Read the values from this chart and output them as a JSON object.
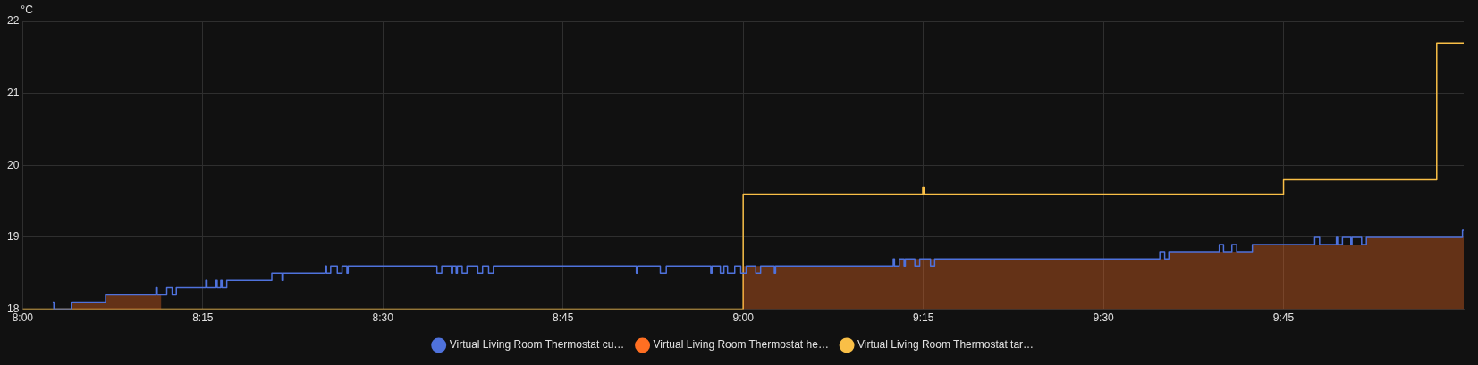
{
  "chart_data": {
    "type": "step",
    "ylabel": "°C",
    "xlim": [
      8,
      10
    ],
    "xticks": [
      {
        "value": 8,
        "label": "8:00"
      },
      {
        "value": 8.25,
        "label": "8:15"
      },
      {
        "value": 8.5,
        "label": "8:30"
      },
      {
        "value": 8.75,
        "label": "8:45"
      },
      {
        "value": 9,
        "label": "9:00"
      },
      {
        "value": 9.25,
        "label": "9:15"
      },
      {
        "value": 9.5,
        "label": "9:30"
      },
      {
        "value": 9.75,
        "label": "9:45"
      }
    ],
    "ylim": [
      18,
      22
    ],
    "yticks": [
      18,
      19,
      20,
      21,
      22
    ],
    "grid": true,
    "legend": "bottom",
    "marker": "none",
    "series": [
      {
        "name": "Virtual Living Room Thermostat cu…",
        "color": "#4f72dc",
        "x": [
          8.0417,
          8.0433,
          8.0675,
          8.115,
          8.185,
          8.1867,
          8.2,
          8.2075,
          8.2133,
          8.2542,
          8.2558,
          8.2683,
          8.27,
          8.275,
          8.2767,
          8.2833,
          8.3458,
          8.36,
          8.3617,
          8.42,
          8.4217,
          8.4275,
          8.4367,
          8.4433,
          8.45,
          8.4517,
          8.575,
          8.5817,
          8.595,
          8.5967,
          8.6017,
          8.6033,
          8.61,
          8.6167,
          8.6317,
          8.6383,
          8.6467,
          8.6533,
          8.8517,
          8.8533,
          8.885,
          8.8933,
          8.955,
          8.9567,
          8.9683,
          8.9733,
          8.9783,
          8.9883,
          8.9967,
          9.0042,
          9.0175,
          9.0242,
          9.0433,
          9.045,
          9.2083,
          9.21,
          9.2167,
          9.2233,
          9.225,
          9.2383,
          9.245,
          9.26,
          9.2658,
          9.5783,
          9.585,
          9.5908,
          9.6608,
          9.6667,
          9.6783,
          9.685,
          9.7067,
          9.7933,
          9.8,
          9.8233,
          9.825,
          9.8317,
          9.8433,
          9.845,
          9.8583,
          9.865,
          9.9983,
          10
        ],
        "values": [
          18.1,
          18,
          18.1,
          18.2,
          18.3,
          18.2,
          18.3,
          18.2,
          18.3,
          18.4,
          18.3,
          18.4,
          18.3,
          18.4,
          18.3,
          18.4,
          18.5,
          18.4,
          18.5,
          18.6,
          18.5,
          18.6,
          18.5,
          18.6,
          18.5,
          18.6,
          18.5,
          18.6,
          18.5,
          18.6,
          18.5,
          18.6,
          18.5,
          18.6,
          18.5,
          18.6,
          18.5,
          18.6,
          18.5,
          18.6,
          18.5,
          18.6,
          18.5,
          18.6,
          18.5,
          18.6,
          18.5,
          18.6,
          18.5,
          18.6,
          18.5,
          18.6,
          18.5,
          18.6,
          18.7,
          18.6,
          18.7,
          18.6,
          18.7,
          18.6,
          18.7,
          18.6,
          18.7,
          18.8,
          18.7,
          18.8,
          18.9,
          18.8,
          18.9,
          18.8,
          18.9,
          19,
          18.9,
          19,
          18.9,
          19,
          18.9,
          19,
          18.9,
          19,
          19.1,
          19.1
        ]
      },
      {
        "name": "Virtual Living Room Thermostat he…",
        "type": "area",
        "color": "#ff6f22",
        "x": [
          8.0675,
          8.115,
          8.1925,
          8.1933,
          9,
          9.2167,
          9.5908,
          9.7067,
          9.865,
          10
        ],
        "values": [
          18.1,
          18.2,
          18.2,
          null,
          18.6,
          18.7,
          18.8,
          18.9,
          19,
          19
        ]
      },
      {
        "name": "Virtual Living Room Thermostat tar…",
        "color": "#f9bf47",
        "x": [
          8,
          9,
          9.2492,
          9.2508,
          9.75,
          9.9625,
          10
        ],
        "values": [
          18,
          19.6,
          19.7,
          19.6,
          19.8,
          21.7,
          21.7
        ]
      }
    ]
  }
}
